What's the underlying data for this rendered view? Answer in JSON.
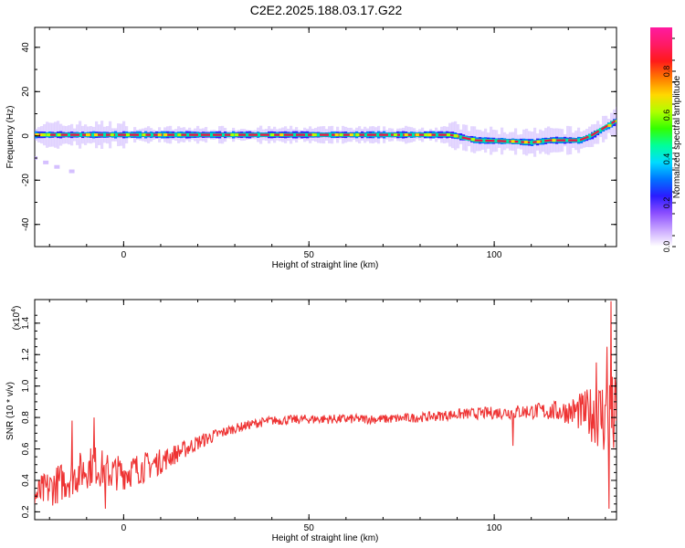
{
  "title": "C2E2.2025.188.03.17.G22",
  "chart_data": [
    {
      "type": "heatmap",
      "xlabel": "Height of straight line (km)",
      "ylabel": "Frequency (Hz)",
      "xlim": [
        -24,
        133
      ],
      "ylim": [
        -50,
        49
      ],
      "xticks": [
        0,
        50,
        100
      ],
      "yticks": [
        -40,
        -20,
        0,
        20,
        40
      ],
      "colorbar": {
        "label": "Normalized spectral amplitude",
        "range": [
          0,
          1
        ],
        "ticks": [
          "0.0",
          "0.2",
          "0.4",
          "0.6",
          "0.8"
        ],
        "colors": [
          "#ffffff",
          "#c9a6ff",
          "#8a4dff",
          "#2a1cff",
          "#0074ff",
          "#00dcff",
          "#00ff9a",
          "#33ff00",
          "#b0ff00",
          "#ffd800",
          "#ff7a00",
          "#ff1a1a",
          "#ff1a66",
          "#ff1aa0"
        ]
      },
      "ridge": {
        "x": [
          -24,
          85,
          88,
          95,
          105,
          110,
          115,
          123,
          126,
          129,
          133
        ],
        "freq": [
          0.5,
          0.5,
          0.5,
          -2,
          -2.5,
          -3,
          -2,
          -2,
          0,
          3,
          7
        ]
      },
      "secondary_trace": {
        "x": [
          -24,
          -21,
          -18,
          -14
        ],
        "freq": [
          -10,
          -12,
          -14,
          -16
        ]
      }
    },
    {
      "type": "line",
      "xlabel": "Height of straight line (km)",
      "ylabel": "SNR (10 * v/v)",
      "y_multiplier": "(x10",
      "y_multiplier_exp": "4",
      "y_multiplier_close": ")",
      "xlim": [
        -24,
        133
      ],
      "ylim": [
        0.15,
        1.55
      ],
      "xticks": [
        0,
        50,
        100
      ],
      "yticks": [
        0.2,
        0.4,
        0.6,
        0.8,
        1.0,
        1.2,
        1.4
      ],
      "ytick_labels": [
        "0.2",
        "0.4",
        "0.6",
        "0.8",
        "1.0",
        "1.2",
        "1.4"
      ],
      "color": "#ee3333",
      "series": [
        {
          "x": [
            -24,
            -20,
            -16,
            -12,
            -8,
            -4,
            0,
            5,
            10,
            15,
            20,
            25,
            30,
            35,
            40,
            50,
            60,
            70,
            80,
            90,
            100,
            110,
            115,
            120,
            125,
            128,
            131,
            133
          ],
          "values": [
            0.3,
            0.35,
            0.4,
            0.45,
            0.5,
            0.45,
            0.45,
            0.48,
            0.52,
            0.58,
            0.64,
            0.69,
            0.73,
            0.76,
            0.78,
            0.79,
            0.79,
            0.79,
            0.8,
            0.82,
            0.83,
            0.84,
            0.84,
            0.84,
            0.83,
            0.82,
            0.8,
            0.78
          ],
          "noise": [
            0.11,
            0.12,
            0.13,
            0.13,
            0.13,
            0.12,
            0.11,
            0.1,
            0.08,
            0.06,
            0.05,
            0.04,
            0.03,
            0.03,
            0.03,
            0.03,
            0.03,
            0.03,
            0.03,
            0.035,
            0.04,
            0.05,
            0.06,
            0.08,
            0.15,
            0.22,
            0.3,
            0.28
          ]
        }
      ],
      "peaks": [
        {
          "x": 131.5,
          "y": 1.54
        },
        {
          "x": 130.5,
          "y": 1.25
        },
        {
          "x": 127.5,
          "y": 1.15
        },
        {
          "x": 105,
          "y": 0.62
        },
        {
          "x": 131,
          "y": 0.22
        },
        {
          "x": -8,
          "y": 0.8
        },
        {
          "x": -14,
          "y": 0.78
        },
        {
          "x": -5,
          "y": 0.22
        }
      ]
    }
  ]
}
